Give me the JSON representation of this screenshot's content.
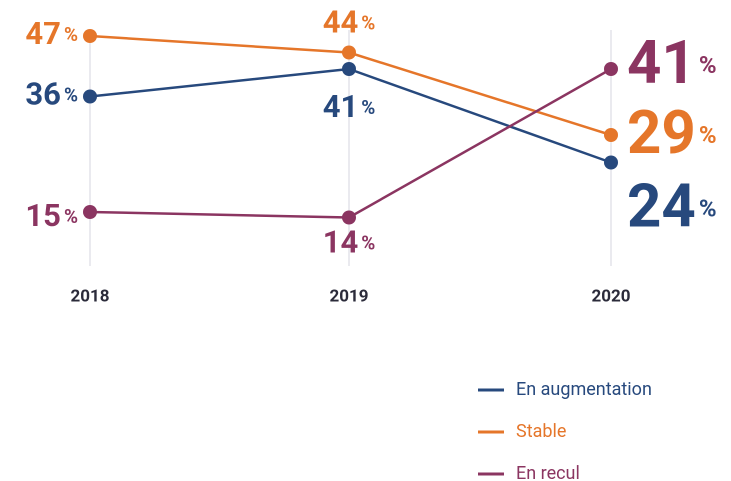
{
  "chart_data": {
    "type": "line",
    "x": [
      "2018",
      "2019",
      "2020"
    ],
    "series": [
      {
        "name": "En augmentation",
        "color": "#27497d",
        "values": [
          36,
          41,
          24
        ]
      },
      {
        "name": "Stable",
        "color": "#e5762a",
        "values": [
          47,
          44,
          29
        ]
      },
      {
        "name": "En recul",
        "color": "#8b3561",
        "values": [
          15,
          14,
          41
        ]
      }
    ],
    "value_suffix": "%",
    "ylim": [
      0,
      50
    ],
    "legend": "bottom-right"
  }
}
